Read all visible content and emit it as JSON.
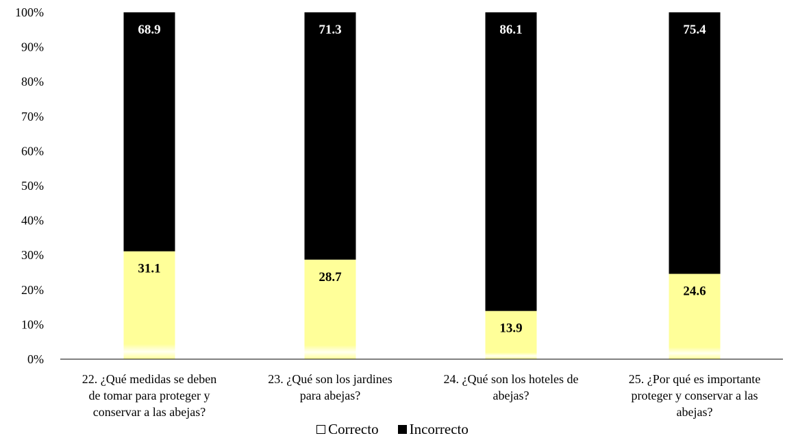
{
  "chart_data": {
    "type": "bar",
    "stacked": true,
    "percent_stacked": true,
    "categories": [
      "22. ¿Qué medidas se deben de tomar para proteger y conservar a las abejas?",
      "23. ¿Qué son los jardines para abejas?",
      "24. ¿Qué son los hoteles de abejas?",
      "25. ¿Por qué es importante proteger y conservar a las abejas?"
    ],
    "category_lines": [
      [
        "22. ¿Qué medidas se deben",
        "de tomar para proteger y",
        "conservar a las abejas?"
      ],
      [
        "23. ¿Qué son los jardines",
        "para abejas?"
      ],
      [
        "24. ¿Qué son los hoteles de",
        "abejas?"
      ],
      [
        "25. ¿Por qué es importante",
        "proteger y conservar a las",
        "abejas?"
      ]
    ],
    "series": [
      {
        "name": "Correcto",
        "values": [
          31.1,
          28.7,
          13.9,
          24.6
        ],
        "color": "#ffff99",
        "label_values": [
          "31.1",
          "28.7",
          "13.9",
          "24.6"
        ]
      },
      {
        "name": "Incorrecto",
        "values": [
          68.9,
          71.3,
          86.1,
          75.4
        ],
        "color": "#000000",
        "label_values": [
          "68.9",
          "71.3",
          "86.1",
          "75.4"
        ]
      }
    ],
    "y_ticks": [
      "0%",
      "10%",
      "20%",
      "30%",
      "40%",
      "50%",
      "60%",
      "70%",
      "80%",
      "90%",
      "100%"
    ],
    "ylim": [
      0,
      100
    ],
    "grid": false,
    "legend_position": "bottom-center",
    "data_labels": true
  },
  "legend": {
    "correct_label": "Correcto",
    "incorrect_label": "Incorrecto"
  }
}
